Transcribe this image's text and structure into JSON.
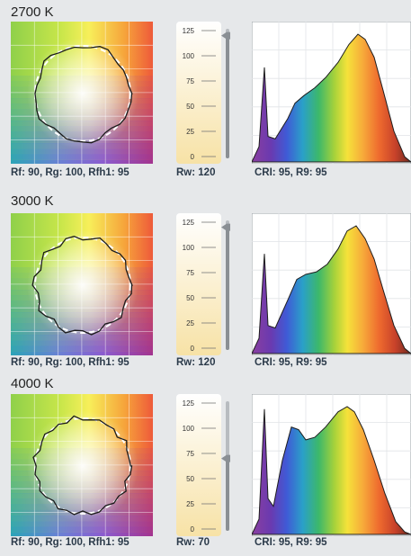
{
  "panels": [
    {
      "cct_label": "2700 K",
      "gamut_metrics": "Rf: 90, Rg: 100, Rfh1: 95",
      "rw_label": "Rw: 120",
      "rw_value": 120,
      "cri_label": "CRI: 95, R9: 95",
      "spectrum_shape": "warm"
    },
    {
      "cct_label": "3000 K",
      "gamut_metrics": "Rf: 90, Rg: 100, Rfh1: 95",
      "rw_label": "Rw: 120",
      "rw_value": 120,
      "cri_label": "CRI: 95, R9: 95",
      "spectrum_shape": "neutral-warm"
    },
    {
      "cct_label": "4000 K",
      "gamut_metrics": "Rf: 90, Rg: 100, Rfh1: 95",
      "rw_label": "Rw: 70",
      "rw_value": 70,
      "cri_label": "CRI: 95, R9: 95",
      "spectrum_shape": "neutral"
    }
  ],
  "gauge_ticks": [
    "125",
    "100",
    "75",
    "50",
    "25",
    "0"
  ],
  "gauge_max": 125,
  "colors": {
    "background": "#e6e8ea",
    "gauge_fill_top": "#ffffff",
    "gauge_fill_bottom": "#f7e2a6",
    "caption_text": "#2b3a4a"
  }
}
